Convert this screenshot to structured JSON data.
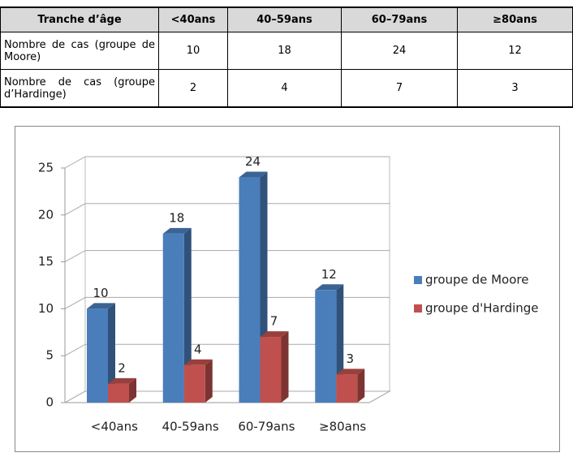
{
  "table": {
    "header": [
      "Tranche d’âge",
      "<40ans",
      "40–59ans",
      "60–79ans",
      "≥80ans"
    ],
    "rows": [
      [
        "Nombre de cas (groupe de Moore)",
        "10",
        "18",
        "24",
        "12"
      ],
      [
        "Nombre de cas (groupe d’Hardinge)",
        "2",
        "4",
        "7",
        "3"
      ]
    ]
  },
  "chart_data": {
    "type": "bar3d",
    "categories": [
      "<40ans",
      "40-59ans",
      "60-79ans",
      "≥80ans"
    ],
    "series": [
      {
        "name": "groupe de Moore",
        "color": "#4a7ebb",
        "values": [
          10,
          18,
          24,
          12
        ]
      },
      {
        "name": "groupe d'Hardinge",
        "color": "#c0504d",
        "values": [
          2,
          4,
          7,
          3
        ]
      }
    ],
    "ylim": [
      0,
      25
    ],
    "yticks": [
      0,
      5,
      10,
      15,
      20,
      25
    ],
    "grid": true,
    "legend": "right"
  }
}
